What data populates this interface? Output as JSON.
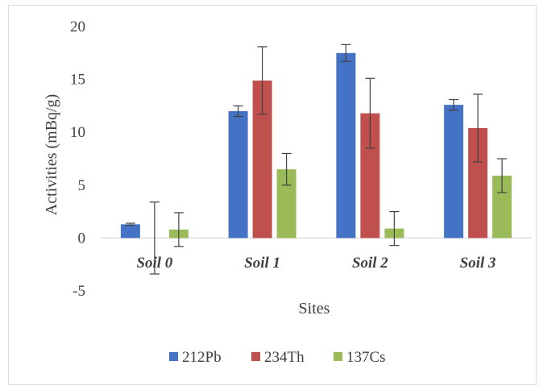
{
  "chart_data": {
    "type": "bar",
    "title": "",
    "xlabel": "Sites",
    "ylabel": "Activities (mBq/g)",
    "ylim": [
      -5,
      20
    ],
    "yticks": [
      20,
      15,
      10,
      5,
      0,
      -5
    ],
    "ytick_labels": [
      "20",
      "15",
      "10",
      "5",
      "0",
      "-5"
    ],
    "categories": [
      "Soil 0",
      "Soil 1",
      "Soil 2",
      "Soil 3"
    ],
    "grid": false,
    "legend_position": "bottom",
    "series": [
      {
        "name": "212Pb",
        "color": "#4472C4",
        "values": [
          1.3,
          12.0,
          17.5,
          12.6
        ],
        "error": [
          0.1,
          0.5,
          0.8,
          0.5
        ]
      },
      {
        "name": "234Th",
        "color": "#C0504D",
        "values": [
          0.0,
          14.9,
          11.8,
          10.4
        ],
        "error": [
          3.4,
          3.2,
          3.3,
          3.2
        ]
      },
      {
        "name": "137Cs",
        "color": "#9BBB59",
        "values": [
          0.8,
          6.5,
          0.9,
          5.9
        ],
        "error": [
          1.6,
          1.5,
          1.6,
          1.6
        ]
      }
    ]
  }
}
